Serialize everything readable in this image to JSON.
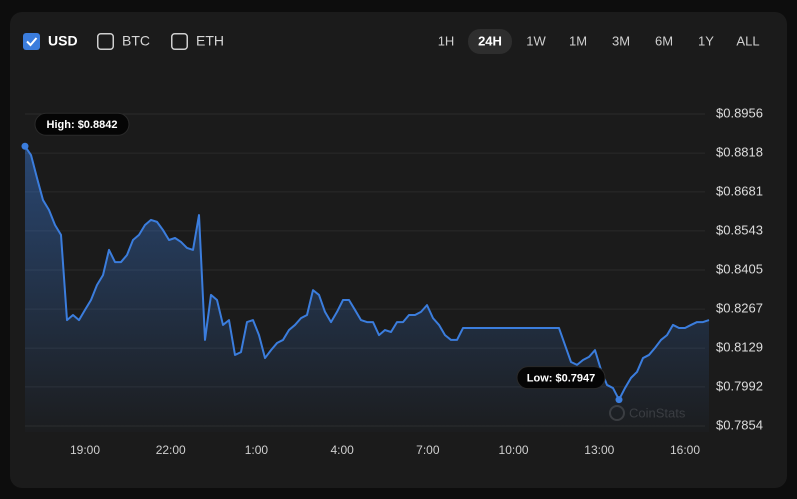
{
  "controls": {
    "currencies": [
      {
        "label": "USD",
        "checked": true
      },
      {
        "label": "BTC",
        "checked": false
      },
      {
        "label": "ETH",
        "checked": false
      }
    ],
    "ranges": [
      "1H",
      "24H",
      "1W",
      "1M",
      "3M",
      "6M",
      "1Y",
      "ALL"
    ],
    "active_range": "24H"
  },
  "watermark": "CoinStats",
  "chart_data": {
    "type": "area",
    "color": "#3b7ddd",
    "grid": true,
    "annotations": [
      {
        "text": "High: $0.8842"
      },
      {
        "text": "Low: $0.7947"
      }
    ],
    "x": [
      16.9,
      17.11,
      17.32,
      17.53,
      17.74,
      17.95,
      18.16,
      18.37,
      18.58,
      18.79,
      19.0,
      19.21,
      19.42,
      19.63,
      19.84,
      20.05,
      20.26,
      20.47,
      20.68,
      20.89,
      21.1,
      21.31,
      21.52,
      21.73,
      21.94,
      22.15,
      22.36,
      22.57,
      22.78,
      22.99,
      23.2,
      23.41,
      23.62,
      23.83,
      24.04,
      24.25,
      24.46,
      24.67,
      24.88,
      25.09,
      25.3,
      25.51,
      25.72,
      25.93,
      26.14,
      26.35,
      26.56,
      26.77,
      26.98,
      27.19,
      27.4,
      27.61,
      27.82,
      28.03,
      28.24,
      28.45,
      28.66,
      28.87,
      29.08,
      29.29,
      29.5,
      29.71,
      29.92,
      30.13,
      30.34,
      30.55,
      30.76,
      30.97,
      31.18,
      31.39,
      31.6,
      31.81,
      32.02,
      32.23,
      32.44,
      32.65,
      32.86,
      33.07,
      33.28,
      33.49,
      33.7,
      33.91,
      34.12,
      34.33,
      34.54,
      34.75,
      34.96,
      35.17,
      35.38,
      35.59,
      35.8,
      36.01,
      36.22,
      36.43,
      36.64,
      36.85,
      37.06,
      37.27,
      37.48,
      37.69,
      37.9,
      38.11,
      38.32,
      38.53,
      38.74,
      38.95,
      39.16,
      39.37,
      39.58,
      39.79,
      40.0,
      40.21,
      40.42,
      40.63,
      40.84
    ],
    "values": [
      0.8842,
      0.8811,
      0.873,
      0.8652,
      0.8617,
      0.8564,
      0.8529,
      0.8228,
      0.8246,
      0.8228,
      0.8264,
      0.8299,
      0.8352,
      0.8387,
      0.8476,
      0.8433,
      0.8433,
      0.8458,
      0.8511,
      0.8529,
      0.8564,
      0.8582,
      0.8575,
      0.8546,
      0.8511,
      0.8518,
      0.8504,
      0.8483,
      0.8476,
      0.8599,
      0.8158,
      0.8317,
      0.8299,
      0.8211,
      0.8228,
      0.8105,
      0.8115,
      0.8221,
      0.8228,
      0.8175,
      0.8094,
      0.8122,
      0.8147,
      0.8158,
      0.8193,
      0.8211,
      0.8235,
      0.8246,
      0.8334,
      0.8317,
      0.8257,
      0.8221,
      0.8257,
      0.8299,
      0.8299,
      0.8264,
      0.8228,
      0.8221,
      0.8221,
      0.8175,
      0.8193,
      0.8186,
      0.8221,
      0.8221,
      0.8246,
      0.8246,
      0.8257,
      0.8281,
      0.8235,
      0.8211,
      0.8175,
      0.8158,
      0.8158,
      0.82,
      0.82,
      0.82,
      0.82,
      0.82,
      0.82,
      0.82,
      0.82,
      0.82,
      0.82,
      0.82,
      0.82,
      0.82,
      0.82,
      0.82,
      0.82,
      0.82,
      0.814,
      0.808,
      0.807,
      0.8087,
      0.8098,
      0.8122,
      0.8052,
      0.7999,
      0.7988,
      0.7947,
      0.7988,
      0.8024,
      0.8045,
      0.8094,
      0.8105,
      0.813,
      0.8158,
      0.8175,
      0.8211,
      0.82,
      0.82,
      0.8211,
      0.8221,
      0.8221,
      0.8228
    ],
    "xlim": [
      16.9,
      40.84
    ],
    "xticks": [
      {
        "value": 19,
        "label": "19:00"
      },
      {
        "value": 22,
        "label": "22:00"
      },
      {
        "value": 25,
        "label": "1:00"
      },
      {
        "value": 28,
        "label": "4:00"
      },
      {
        "value": 31,
        "label": "7:00"
      },
      {
        "value": 34,
        "label": "10:00"
      },
      {
        "value": 37,
        "label": "13:00"
      },
      {
        "value": 40,
        "label": "16:00"
      }
    ],
    "ylim": [
      0.7854,
      0.8956
    ],
    "yticks": [
      {
        "value": 0.8956,
        "label": "$0.8956"
      },
      {
        "value": 0.8818,
        "label": "$0.8818"
      },
      {
        "value": 0.8681,
        "label": "$0.8681"
      },
      {
        "value": 0.8543,
        "label": "$0.8543"
      },
      {
        "value": 0.8405,
        "label": "$0.8405"
      },
      {
        "value": 0.8267,
        "label": "$0.8267"
      },
      {
        "value": 0.8129,
        "label": "$0.8129"
      },
      {
        "value": 0.7992,
        "label": "$0.7992"
      },
      {
        "value": 0.7854,
        "label": "$0.7854"
      }
    ]
  }
}
